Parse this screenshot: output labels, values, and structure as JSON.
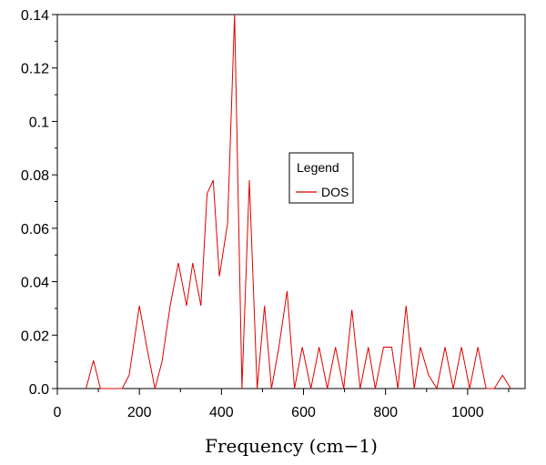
{
  "chart_data": {
    "type": "line",
    "title": "",
    "xlabel": "Frequency (cm−1)",
    "ylabel": "",
    "xlim": [
      0,
      1140
    ],
    "ylim": [
      0,
      0.14
    ],
    "xticks": [
      0,
      200,
      400,
      600,
      800,
      1000
    ],
    "yticks": [
      0.0,
      0.02,
      0.04,
      0.06,
      0.08,
      0.1,
      0.12,
      0.14
    ],
    "xtick_labels": [
      "0",
      "200",
      "400",
      "600",
      "800",
      "1000"
    ],
    "ytick_labels": [
      "0.0",
      "0.02",
      "0.04",
      "0.06",
      "0.08",
      "0.1",
      "0.12",
      "0.14"
    ],
    "grid": false,
    "legend": {
      "title": "Legend",
      "placement": "center-right"
    },
    "series": [
      {
        "name": "DOS",
        "color": "#e00000",
        "x": [
          70,
          88,
          105,
          158,
          175,
          200,
          218,
          238,
          255,
          275,
          295,
          315,
          330,
          350,
          365,
          380,
          395,
          415,
          432,
          450,
          468,
          487,
          505,
          522,
          540,
          560,
          578,
          597,
          618,
          638,
          658,
          678,
          698,
          718,
          738,
          758,
          775,
          795,
          815,
          830,
          850,
          870,
          885,
          905,
          925,
          945,
          965,
          985,
          1005,
          1025,
          1045,
          1065,
          1085,
          1105
        ],
        "y": [
          0,
          0.0105,
          0,
          0,
          0.005,
          0.031,
          0.0155,
          0,
          0.01,
          0.031,
          0.047,
          0.031,
          0.047,
          0.031,
          0.073,
          0.078,
          0.042,
          0.062,
          0.14,
          0,
          0.078,
          0,
          0.031,
          0,
          0.0155,
          0.0365,
          0,
          0.0155,
          0,
          0.0155,
          0,
          0.0155,
          0,
          0.0295,
          0,
          0.0155,
          0,
          0.0155,
          0.0155,
          0,
          0.031,
          0,
          0.0155,
          0.005,
          0,
          0.0155,
          0,
          0.0155,
          0,
          0.0155,
          0,
          0,
          0.005,
          0
        ]
      }
    ]
  }
}
